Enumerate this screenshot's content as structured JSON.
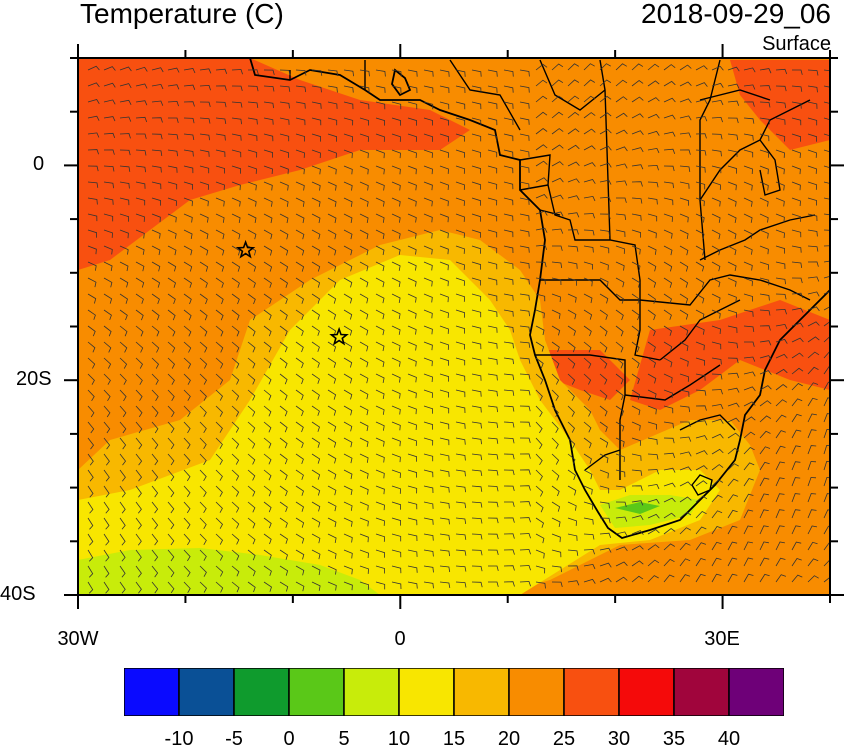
{
  "title": "Temperature (C)",
  "datetime": "2018-09-29_06",
  "level": "Surface",
  "map": {
    "lon_range": [
      -30,
      40
    ],
    "lat_range": [
      -40,
      10
    ],
    "lat_labels": [
      "0",
      "20S",
      "40S"
    ],
    "lon_labels": [
      "30W",
      "0",
      "30E"
    ],
    "stars": [
      {
        "lon": -14.4,
        "lat": -7.9
      },
      {
        "lon": -5.7,
        "lat": -16.0
      }
    ]
  },
  "colorbar": {
    "labels": [
      "-10",
      "-5",
      "0",
      "5",
      "10",
      "15",
      "20",
      "25",
      "30",
      "35",
      "40"
    ],
    "colors": [
      "#0a0aff",
      "#0a5096",
      "#0f9b2d",
      "#5ac818",
      "#c8ec0a",
      "#f8e600",
      "#f8b800",
      "#f88c00",
      "#f85010",
      "#f50a0a",
      "#a0053c",
      "#6e0078"
    ]
  }
}
